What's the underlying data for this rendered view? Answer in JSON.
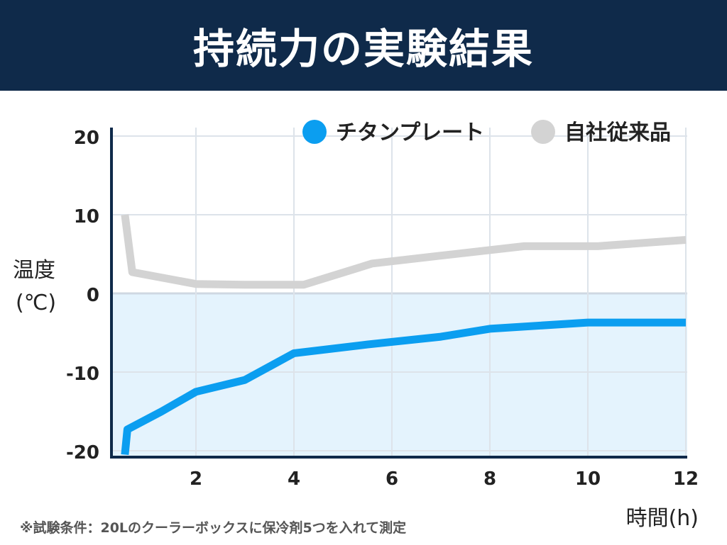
{
  "title": "持続力の実験結果",
  "note": "※試験条件：20Lのクーラーボックスに保冷剤5つを入れて測定",
  "colors": {
    "banner": "#0f2a4a",
    "titanium": "#0b9ef0",
    "conventional": "#d3d3d3",
    "below_zero_fill": "#e4f3fd",
    "axis": "#0f2a4a",
    "grid": "#dde3ea"
  },
  "chart_data": {
    "type": "line",
    "ylabel_line1": "温度",
    "ylabel_line2": "(℃)",
    "xlabel": "時間(h)",
    "xlim": [
      0.4,
      12
    ],
    "ylim": [
      -21,
      22
    ],
    "x_ticks": [
      2,
      4,
      6,
      8,
      10,
      12
    ],
    "y_ticks": [
      20,
      10,
      0,
      -10,
      -20
    ],
    "grid": true,
    "legend_position": "top-right",
    "series": [
      {
        "name": "チタンプレート",
        "color": "#0b9ef0",
        "x": [
          0.55,
          0.6,
          1.3,
          2.0,
          3.0,
          4.0,
          5.5,
          7.0,
          8.0,
          10.0,
          12.0
        ],
        "y": [
          -20.5,
          -17.3,
          -15.0,
          -12.5,
          -11.0,
          -7.6,
          -6.5,
          -5.5,
          -4.5,
          -3.7,
          -3.7
        ]
      },
      {
        "name": "自社従来品",
        "color": "#d3d3d3",
        "x": [
          0.55,
          0.7,
          2.0,
          3.0,
          4.2,
          5.6,
          7.0,
          8.7,
          10.2,
          12.0
        ],
        "y": [
          10.0,
          2.7,
          1.2,
          1.1,
          1.1,
          3.8,
          4.8,
          6.0,
          6.0,
          6.8
        ]
      }
    ]
  }
}
